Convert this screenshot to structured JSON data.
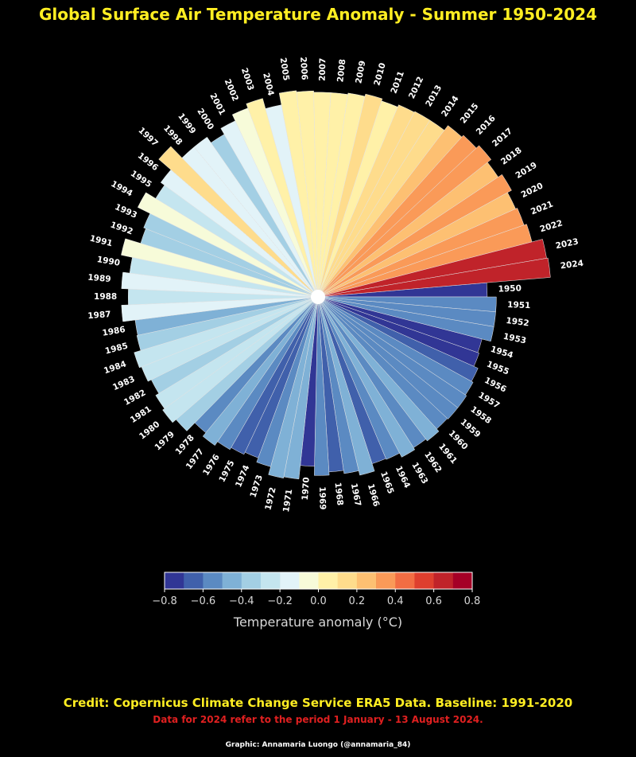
{
  "title": "Global Surface Air Temperature Anomaly - Summer 1950-2024",
  "credit": "Credit: Copernicus Climate Change Service ERA5 Data. Baseline: 1991-2020",
  "note": "Data for 2024 refer to the period 1 January - 13 August 2024.",
  "author": "Graphic: Annamaria Luongo (@annamaria_84)",
  "colorbar": {
    "label": "Temperature anomaly (°C)",
    "ticks": [
      "−0.8",
      "−0.6",
      "−0.4",
      "−0.2",
      "0.0",
      "0.2",
      "0.4",
      "0.6",
      "0.8"
    ],
    "min": -0.8,
    "max": 0.8,
    "colors": [
      "#313695",
      "#4060ab",
      "#5b8ac2",
      "#7fb1d6",
      "#a3cfe4",
      "#c4e5ef",
      "#e2f3f8",
      "#f7fbd9",
      "#fff1a8",
      "#fedc8c",
      "#fdc072",
      "#fa9a58",
      "#f26d43",
      "#de3f2e",
      "#c0232a",
      "#a50026"
    ]
  },
  "chart_data": {
    "type": "bar",
    "polar": true,
    "categories": [
      "1950",
      "1951",
      "1952",
      "1953",
      "1954",
      "1955",
      "1956",
      "1957",
      "1958",
      "1959",
      "1960",
      "1961",
      "1962",
      "1963",
      "1964",
      "1965",
      "1966",
      "1967",
      "1968",
      "1969",
      "1970",
      "1971",
      "1972",
      "1973",
      "1974",
      "1975",
      "1976",
      "1977",
      "1978",
      "1979",
      "1980",
      "1981",
      "1982",
      "1983",
      "1984",
      "1985",
      "1986",
      "1987",
      "1988",
      "1989",
      "1990",
      "1991",
      "1992",
      "1993",
      "1994",
      "1995",
      "1996",
      "1997",
      "1998",
      "1999",
      "2000",
      "2001",
      "2002",
      "2003",
      "2004",
      "2005",
      "2006",
      "2007",
      "2008",
      "2009",
      "2010",
      "2011",
      "2012",
      "2013",
      "2014",
      "2015",
      "2016",
      "2017",
      "2018",
      "2019",
      "2020",
      "2021",
      "2022",
      "2023",
      "2024"
    ],
    "values": [
      -0.75,
      -0.55,
      -0.55,
      -0.55,
      -0.75,
      -0.72,
      -0.62,
      -0.58,
      -0.55,
      -0.55,
      -0.57,
      -0.5,
      -0.55,
      -0.5,
      -0.6,
      -0.62,
      -0.45,
      -0.55,
      -0.62,
      -0.55,
      -0.75,
      -0.45,
      -0.42,
      -0.6,
      -0.7,
      -0.65,
      -0.6,
      -0.5,
      -0.6,
      -0.35,
      -0.25,
      -0.3,
      -0.38,
      -0.3,
      -0.25,
      -0.4,
      -0.42,
      -0.15,
      -0.3,
      -0.15,
      -0.3,
      -0.05,
      -0.4,
      -0.35,
      -0.05,
      -0.3,
      -0.2,
      0.15,
      -0.2,
      -0.2,
      -0.35,
      -0.2,
      -0.05,
      0.05,
      -0.18,
      0.08,
      0.05,
      0.02,
      0.02,
      0.05,
      0.1,
      0.05,
      0.1,
      0.12,
      0.12,
      0.25,
      0.3,
      0.38,
      0.28,
      0.38,
      0.28,
      0.32,
      0.38,
      0.62,
      0.65
    ]
  }
}
